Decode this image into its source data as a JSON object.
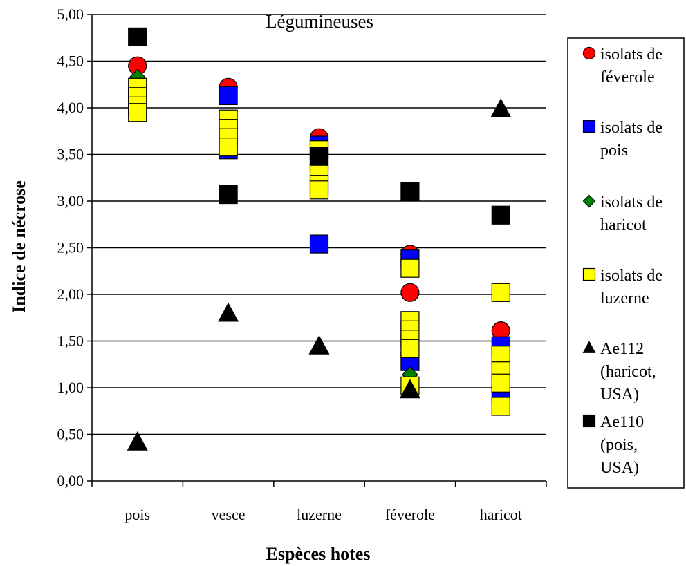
{
  "chart_data": {
    "type": "scatter",
    "title": "Légumineuses",
    "xlabel": "Espèces hotes",
    "ylabel": "Indice de nécrose",
    "categories": [
      "pois",
      "vesce",
      "luzerne",
      "féverole",
      "haricot"
    ],
    "ylim": [
      0,
      5
    ],
    "yticks": [
      "0,00",
      "0,50",
      "1,00",
      "1,50",
      "2,00",
      "2,50",
      "3,00",
      "3,50",
      "4,00",
      "4,50",
      "5,00"
    ],
    "grid": "horizontal",
    "legend_position": "right",
    "series": [
      {
        "name_lines": [
          "isolats de",
          "féverole"
        ],
        "marker": "circle",
        "color": "#ff0000",
        "points": [
          {
            "category": "pois",
            "y": 4.45
          },
          {
            "category": "vesce",
            "y": 4.22
          },
          {
            "category": "luzerne",
            "y": 3.68
          },
          {
            "category": "féverole",
            "y": 2.43
          },
          {
            "category": "féverole",
            "y": 2.02
          },
          {
            "category": "haricot",
            "y": 1.61
          }
        ]
      },
      {
        "name_lines": [
          "isolats de",
          "pois"
        ],
        "marker": "square",
        "color": "#0000ff",
        "points": [
          {
            "category": "pois",
            "y": 4.1
          },
          {
            "category": "vesce",
            "y": 4.13
          },
          {
            "category": "vesce",
            "y": 3.55
          },
          {
            "category": "luzerne",
            "y": 3.6
          },
          {
            "category": "luzerne",
            "y": 2.54
          },
          {
            "category": "féverole",
            "y": 2.38
          },
          {
            "category": "féverole",
            "y": 1.28
          },
          {
            "category": "haricot",
            "y": 1.45
          },
          {
            "category": "haricot",
            "y": 0.95
          }
        ]
      },
      {
        "name_lines": [
          "isolats de",
          "haricot"
        ],
        "marker": "diamond",
        "color": "#008000",
        "points": [
          {
            "category": "pois",
            "y": 4.33
          },
          {
            "category": "féverole",
            "y": 1.14
          }
        ]
      },
      {
        "name_lines": [
          "isolats de",
          "luzerne"
        ],
        "marker": "square",
        "color": "#ffff00",
        "points": [
          {
            "category": "pois",
            "y": 4.22
          },
          {
            "category": "pois",
            "y": 4.12
          },
          {
            "category": "pois",
            "y": 4.02
          },
          {
            "category": "pois",
            "y": 3.95
          },
          {
            "category": "vesce",
            "y": 3.88
          },
          {
            "category": "vesce",
            "y": 3.78
          },
          {
            "category": "vesce",
            "y": 3.68
          },
          {
            "category": "vesce",
            "y": 3.58
          },
          {
            "category": "luzerne",
            "y": 3.55
          },
          {
            "category": "luzerne",
            "y": 3.42
          },
          {
            "category": "luzerne",
            "y": 3.3
          },
          {
            "category": "luzerne",
            "y": 3.18
          },
          {
            "category": "luzerne",
            "y": 3.12
          },
          {
            "category": "féverole",
            "y": 2.28
          },
          {
            "category": "féverole",
            "y": 1.72
          },
          {
            "category": "féverole",
            "y": 1.62
          },
          {
            "category": "féverole",
            "y": 1.52
          },
          {
            "category": "féverole",
            "y": 1.42
          },
          {
            "category": "féverole",
            "y": 1.02
          },
          {
            "category": "haricot",
            "y": 2.02
          },
          {
            "category": "haricot",
            "y": 1.35
          },
          {
            "category": "haricot",
            "y": 1.18
          },
          {
            "category": "haricot",
            "y": 1.05
          },
          {
            "category": "haricot",
            "y": 0.8
          }
        ]
      },
      {
        "name_lines": [
          "Ae112",
          "(haricot,",
          "USA)"
        ],
        "marker": "triangle",
        "color": "#000000",
        "points": [
          {
            "category": "pois",
            "y": 0.42
          },
          {
            "category": "vesce",
            "y": 1.8
          },
          {
            "category": "luzerne",
            "y": 1.45
          },
          {
            "category": "féverole",
            "y": 0.98
          },
          {
            "category": "haricot",
            "y": 3.99
          }
        ]
      },
      {
        "name_lines": [
          "Ae110",
          "(pois,",
          "USA)"
        ],
        "marker": "square",
        "color": "#000000",
        "points": [
          {
            "category": "pois",
            "y": 4.76
          },
          {
            "category": "vesce",
            "y": 3.07
          },
          {
            "category": "luzerne",
            "y": 3.48
          },
          {
            "category": "féverole",
            "y": 3.1
          },
          {
            "category": "haricot",
            "y": 2.85
          }
        ]
      }
    ]
  }
}
